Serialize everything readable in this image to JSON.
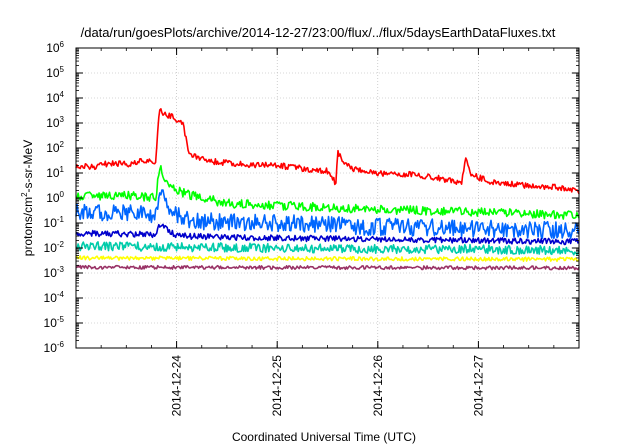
{
  "chart_data": {
    "type": "line",
    "title": "/data/run/goesPlots/archive/2014-12-27/23:00/flux/../flux/5daysEarthDataFluxes.txt",
    "xlabel": "Coordinated Universal Time (UTC)",
    "ylabel": {
      "base": "protons/cm",
      "sup": "2",
      "rest": "-s-sr-MeV"
    },
    "x_scale": "time",
    "xlim": [
      "2014-12-23 00:00",
      "2014-12-28 00:00"
    ],
    "x_ticks": [
      "2014-12-24",
      "2014-12-25",
      "2014-12-26",
      "2014-12-27"
    ],
    "y_scale": "log",
    "ylim": [
      1e-06,
      1000000.0
    ],
    "y_ticks": [
      {
        "base": "10",
        "exp": "-6"
      },
      {
        "base": "10",
        "exp": "-5"
      },
      {
        "base": "10",
        "exp": "-4"
      },
      {
        "base": "10",
        "exp": "-3"
      },
      {
        "base": "10",
        "exp": "-2"
      },
      {
        "base": "10",
        "exp": "-1"
      },
      {
        "base": "10",
        "exp": "0"
      },
      {
        "base": "10",
        "exp": "1"
      },
      {
        "base": "10",
        "exp": "2"
      },
      {
        "base": "10",
        "exp": "3"
      },
      {
        "base": "10",
        "exp": "4"
      },
      {
        "base": "10",
        "exp": "5"
      },
      {
        "base": "10",
        "exp": "6"
      }
    ],
    "grid": true,
    "legend": "none",
    "series": [
      {
        "color": "#ff0000",
        "x": [
          "2014-12-23 00:00",
          "2014-12-23 04:00",
          "2014-12-23 08:00",
          "2014-12-23 12:00",
          "2014-12-23 16:00",
          "2014-12-23 19:00",
          "2014-12-23 19:50",
          "2014-12-23 20:30",
          "2014-12-23 23:00",
          "2014-12-24 01:30",
          "2014-12-24 03:00",
          "2014-12-24 08:00",
          "2014-12-24 12:00",
          "2014-12-24 16:00",
          "2014-12-25 00:00",
          "2014-12-25 08:00",
          "2014-12-25 12:00",
          "2014-12-25 14:00",
          "2014-12-25 14:30",
          "2014-12-25 15:30",
          "2014-12-25 18:00",
          "2014-12-26 00:00",
          "2014-12-26 08:00",
          "2014-12-26 12:00",
          "2014-12-26 18:00",
          "2014-12-26 20:00",
          "2014-12-26 21:00",
          "2014-12-26 22:00",
          "2014-12-27 02:00",
          "2014-12-27 06:00",
          "2014-12-27 12:00",
          "2014-12-27 18:00",
          "2014-12-28 00:00"
        ],
        "y": [
          20,
          17,
          25,
          22,
          30,
          25,
          3500,
          2500,
          1800,
          1000,
          60,
          30,
          25,
          22,
          20,
          14,
          12,
          4,
          80,
          25,
          15,
          10,
          9,
          7,
          5,
          4,
          45,
          9,
          5,
          4,
          3,
          2.8,
          1.8
        ],
        "noise": 0.12
      },
      {
        "color": "#00ff00",
        "x": [
          "2014-12-23 00:00",
          "2014-12-23 12:00",
          "2014-12-23 19:00",
          "2014-12-23 20:00",
          "2014-12-23 22:00",
          "2014-12-24 02:00",
          "2014-12-24 12:00",
          "2014-12-25 00:00",
          "2014-12-26 00:00",
          "2014-12-27 00:00",
          "2014-12-28 00:00"
        ],
        "y": [
          1.2,
          1.3,
          1.0,
          20,
          3,
          1.5,
          0.6,
          0.5,
          0.35,
          0.28,
          0.2
        ],
        "noise": 0.18
      },
      {
        "color": "#0066ff",
        "x": [
          "2014-12-23 00:00",
          "2014-12-23 12:00",
          "2014-12-23 19:00",
          "2014-12-23 20:00",
          "2014-12-23 23:00",
          "2014-12-24 03:00",
          "2014-12-25 00:00",
          "2014-12-26 00:00",
          "2014-12-27 00:00",
          "2014-12-28 00:00"
        ],
        "y": [
          0.3,
          0.25,
          0.2,
          1.5,
          0.3,
          0.12,
          0.1,
          0.07,
          0.06,
          0.05
        ],
        "noise": 0.35
      },
      {
        "color": "#0000cc",
        "x": [
          "2014-12-23 00:00",
          "2014-12-23 19:00",
          "2014-12-23 20:00",
          "2014-12-24 00:00",
          "2014-12-25 00:00",
          "2014-12-26 00:00",
          "2014-12-27 00:00",
          "2014-12-28 00:00"
        ],
        "y": [
          0.04,
          0.035,
          0.09,
          0.03,
          0.025,
          0.022,
          0.02,
          0.018
        ],
        "noise": 0.12
      },
      {
        "color": "#00ccaa",
        "x": [
          "2014-12-23 00:00",
          "2014-12-24 00:00",
          "2014-12-25 00:00",
          "2014-12-26 00:00",
          "2014-12-27 00:00",
          "2014-12-28 00:00"
        ],
        "y": [
          0.012,
          0.011,
          0.01,
          0.009,
          0.009,
          0.008
        ],
        "noise": 0.18
      },
      {
        "color": "#ffff00",
        "x": [
          "2014-12-23 00:00",
          "2014-12-28 00:00"
        ],
        "y": [
          0.004,
          0.0035
        ],
        "noise": 0.08
      },
      {
        "color": "#993366",
        "x": [
          "2014-12-23 00:00",
          "2014-12-28 00:00"
        ],
        "y": [
          0.0017,
          0.0016
        ],
        "noise": 0.07
      }
    ]
  }
}
